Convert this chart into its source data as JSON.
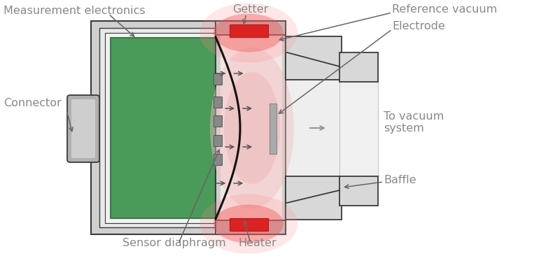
{
  "bg_color": "#ffffff",
  "text_color": "#888888",
  "line_color": "#3a3a3a",
  "green_fill": "#4a9a5a",
  "gray_outer": "#cccccc",
  "gray_inner": "#e8e8e8",
  "gray_mid": "#d5d5d5",
  "gray_connector": "#b8b8b8",
  "pink_light": "#f5e0e0",
  "red_heater": "#cc2222",
  "labels": {
    "measurement_electronics": "Measurement electronics",
    "getter": "Getter",
    "reference_vacuum": "Reference vacuum",
    "electrode": "Electrode",
    "connector": "Connector",
    "to_vacuum": "To vacuum\nsystem",
    "baffle": "Baffle",
    "sensor_diaphragm": "Sensor diaphragm",
    "heater": "Heater"
  }
}
